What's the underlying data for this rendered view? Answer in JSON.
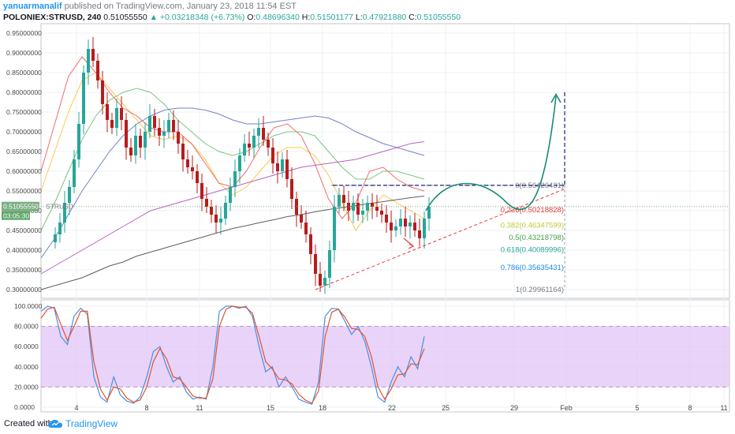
{
  "header": {
    "author": "yanuarmanalif",
    "published_text": "published on TradingView.com, January 23, 2018 11:54 EST",
    "symbol": "POLONIEX:STRUSD, 240",
    "last": "0.51055550",
    "change": "▲ +0.03218348 (+6.73%)",
    "o_label": "O:",
    "o_value": "0.48696340",
    "h_label": "H:",
    "h_value": "0.51501177",
    "l_label": "L:",
    "l_value": "0.47921880",
    "c_label": "C:",
    "c_value": "0.51055550"
  },
  "footer": {
    "created_with": "Created with",
    "brand": "TradingView"
  },
  "colors": {
    "up": "#26a69a",
    "down": "#b71c1c",
    "stoch_k": "#4a90e2",
    "stoch_d": "#e0552e",
    "band": "#e1c4f5",
    "price_tag": "#7bae81",
    "time_tag": "#61a76c",
    "arrow": "#1a8a75",
    "fib_line": "#e53935"
  },
  "chart_data": [
    {
      "type": "candlestick",
      "title": "POLONIEX:STRUSD, 240",
      "x_tick_labels": [
        "4",
        "8",
        "11",
        "15",
        "18",
        "22",
        "25",
        "29",
        "Feb",
        "5",
        "8",
        "11"
      ],
      "y_tick_labels": [
        "0.95000000",
        "0.90000000",
        "0.85000000",
        "0.80000000",
        "0.75000000",
        "0.70000000",
        "0.65000000",
        "0.60000000",
        "0.55000000",
        "0.50000000",
        "0.45000000",
        "0.40000000",
        "0.35000000",
        "0.30000000"
      ],
      "ylim": [
        0.28,
        0.96
      ],
      "grid": true,
      "last_price_tag": "0.51055550",
      "time_tag": "03:05:30",
      "symbol_tag": "STRUSD",
      "closes": [
        0.44,
        0.47,
        0.52,
        0.56,
        0.63,
        0.72,
        0.85,
        0.91,
        0.88,
        0.83,
        0.77,
        0.73,
        0.71,
        0.76,
        0.73,
        0.66,
        0.64,
        0.69,
        0.66,
        0.7,
        0.74,
        0.71,
        0.69,
        0.7,
        0.73,
        0.7,
        0.67,
        0.63,
        0.61,
        0.6,
        0.57,
        0.53,
        0.51,
        0.49,
        0.47,
        0.48,
        0.52,
        0.56,
        0.6,
        0.64,
        0.67,
        0.66,
        0.69,
        0.71,
        0.68,
        0.66,
        0.62,
        0.6,
        0.63,
        0.58,
        0.53,
        0.49,
        0.47,
        0.44,
        0.39,
        0.34,
        0.31,
        0.33,
        0.4,
        0.51,
        0.54,
        0.52,
        0.5,
        0.52,
        0.49,
        0.5,
        0.52,
        0.51,
        0.5,
        0.49,
        0.47,
        0.45,
        0.46,
        0.48,
        0.46,
        0.47,
        0.45,
        0.43,
        0.48,
        0.51
      ],
      "fib_levels": [
        {
          "ratio": "0",
          "price": 0.5642643,
          "label": "0(0.56426431)",
          "color": "#787b86"
        },
        {
          "ratio": "0.236",
          "price": 0.50218828,
          "label": "0.236(0.50218828)",
          "color": "#e53935"
        },
        {
          "ratio": "0.382",
          "price": 0.46347599,
          "label": "0.382(0.46347599)",
          "color": "#c0ca33"
        },
        {
          "ratio": "0.5",
          "price": 0.43218798,
          "label": "0.5(0.43218798)",
          "color": "#43a047"
        },
        {
          "ratio": "0.618",
          "price": 0.40089996,
          "label": "0.618(0.40089996)",
          "color": "#26a69a"
        },
        {
          "ratio": "0.786",
          "price": 0.35635431,
          "label": "0.786(0.35635431)",
          "color": "#1e88e5"
        },
        {
          "ratio": "1",
          "price": 0.29961164,
          "label": "1(0.29961164)",
          "color": "#787b86"
        }
      ],
      "moving_averages": [
        {
          "color": "#fbc02d",
          "values": [
            0.55,
            0.65,
            0.75,
            0.83,
            0.85,
            0.81,
            0.77,
            0.73,
            0.69,
            0.68,
            0.69,
            0.67,
            0.63,
            0.57,
            0.54,
            0.56,
            0.6,
            0.64,
            0.66,
            0.66,
            0.64,
            0.59,
            0.52,
            0.45,
            0.5,
            0.54,
            0.52,
            0.5,
            0.48
          ]
        },
        {
          "color": "#ef5350",
          "values": [
            0.6,
            0.72,
            0.84,
            0.89,
            0.85,
            0.8,
            0.76,
            0.74,
            0.71,
            0.7,
            0.7,
            0.67,
            0.62,
            0.57,
            0.56,
            0.6,
            0.66,
            0.71,
            0.72,
            0.69,
            0.62,
            0.53,
            0.48,
            0.52,
            0.6,
            0.61,
            0.58,
            0.56,
            0.55
          ]
        },
        {
          "color": "#66bb6a",
          "values": [
            0.45,
            0.52,
            0.6,
            0.68,
            0.74,
            0.78,
            0.8,
            0.81,
            0.8,
            0.77,
            0.73,
            0.7,
            0.67,
            0.65,
            0.64,
            0.65,
            0.67,
            0.69,
            0.7,
            0.7,
            0.69,
            0.65,
            0.61,
            0.58,
            0.58,
            0.6,
            0.6,
            0.59,
            0.58
          ]
        },
        {
          "color": "#5c6bc0",
          "values": [
            0.38,
            0.43,
            0.49,
            0.55,
            0.6,
            0.65,
            0.69,
            0.72,
            0.74,
            0.755,
            0.76,
            0.76,
            0.755,
            0.745,
            0.73,
            0.72,
            0.72,
            0.725,
            0.73,
            0.735,
            0.74,
            0.735,
            0.72,
            0.7,
            0.685,
            0.67,
            0.66,
            0.65,
            0.64
          ]
        },
        {
          "color": "#ab47bc",
          "values": [
            0.34,
            0.36,
            0.38,
            0.4,
            0.42,
            0.44,
            0.46,
            0.48,
            0.5,
            0.51,
            0.52,
            0.53,
            0.54,
            0.55,
            0.56,
            0.57,
            0.58,
            0.59,
            0.6,
            0.61,
            0.615,
            0.62,
            0.625,
            0.63,
            0.64,
            0.65,
            0.66,
            0.67,
            0.675
          ]
        },
        {
          "color": "#424242",
          "values": [
            0.3,
            0.31,
            0.32,
            0.33,
            0.345,
            0.36,
            0.37,
            0.385,
            0.395,
            0.405,
            0.415,
            0.425,
            0.435,
            0.445,
            0.455,
            0.462,
            0.47,
            0.477,
            0.485,
            0.49,
            0.497,
            0.503,
            0.508,
            0.513,
            0.518,
            0.523,
            0.528,
            0.533,
            0.537
          ]
        }
      ]
    },
    {
      "type": "line",
      "title": "Stochastic",
      "y_tick_labels": [
        "100.0000",
        "80.0000",
        "60.0000",
        "40.0000",
        "20.0000",
        "0.0000"
      ],
      "ylim": [
        -5,
        105
      ],
      "band": [
        20,
        80
      ],
      "series": [
        {
          "color": "#4a90e2",
          "values": [
            95,
            100,
            98,
            70,
            62,
            90,
            98,
            92,
            30,
            10,
            5,
            30,
            12,
            6,
            4,
            10,
            30,
            55,
            60,
            40,
            25,
            30,
            15,
            8,
            10,
            8,
            40,
            95,
            100,
            100,
            98,
            100,
            90,
            60,
            35,
            40,
            20,
            30,
            20,
            8,
            5,
            3,
            25,
            90,
            98,
            97,
            85,
            72,
            80,
            65,
            40,
            10,
            5,
            25,
            40,
            30,
            50,
            38,
            70
          ]
        },
        {
          "color": "#e0552e",
          "values": [
            88,
            97,
            99,
            82,
            66,
            80,
            95,
            95,
            45,
            18,
            7,
            20,
            18,
            9,
            5,
            7,
            20,
            45,
            58,
            48,
            30,
            28,
            20,
            11,
            9,
            9,
            28,
            80,
            97,
            100,
            99,
            99,
            93,
            70,
            45,
            38,
            28,
            27,
            23,
            13,
            7,
            4,
            16,
            70,
            94,
            97,
            89,
            78,
            77,
            70,
            50,
            20,
            8,
            18,
            32,
            33,
            43,
            42,
            58
          ]
        }
      ]
    }
  ]
}
